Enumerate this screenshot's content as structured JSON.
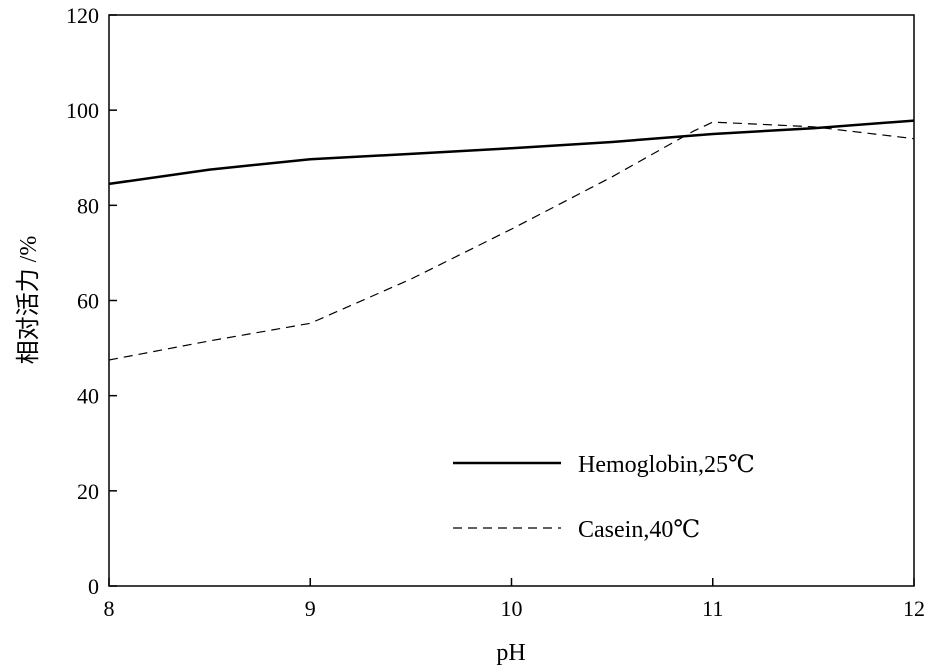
{
  "chart_data": {
    "type": "line",
    "title": "",
    "xlabel": "pH",
    "ylabel": "相对活力 /%",
    "xlim": [
      8,
      12
    ],
    "ylim": [
      0,
      120
    ],
    "x_ticks": [
      "8",
      "9",
      "10",
      "11",
      "12"
    ],
    "y_ticks": [
      "0",
      "20",
      "40",
      "60",
      "80",
      "100",
      "120"
    ],
    "grid": false,
    "legend_position": "bottom-right",
    "series": [
      {
        "name": "Hemoglobin,25℃",
        "style": "solid",
        "x": [
          8,
          8.5,
          9,
          9.5,
          10,
          10.5,
          11,
          11.5,
          12
        ],
        "y": [
          84.5,
          87.5,
          89.7,
          90.8,
          92.0,
          93.3,
          95.0,
          96.2,
          97.8
        ]
      },
      {
        "name": "Casein,40℃",
        "style": "dashed",
        "x": [
          8,
          8.5,
          9,
          9.5,
          10,
          10.5,
          10.9,
          11,
          11.5,
          12
        ],
        "y": [
          47.5,
          51.5,
          55.2,
          64.5,
          75.0,
          86.0,
          95.5,
          97.5,
          96.5,
          94.0
        ]
      }
    ]
  }
}
